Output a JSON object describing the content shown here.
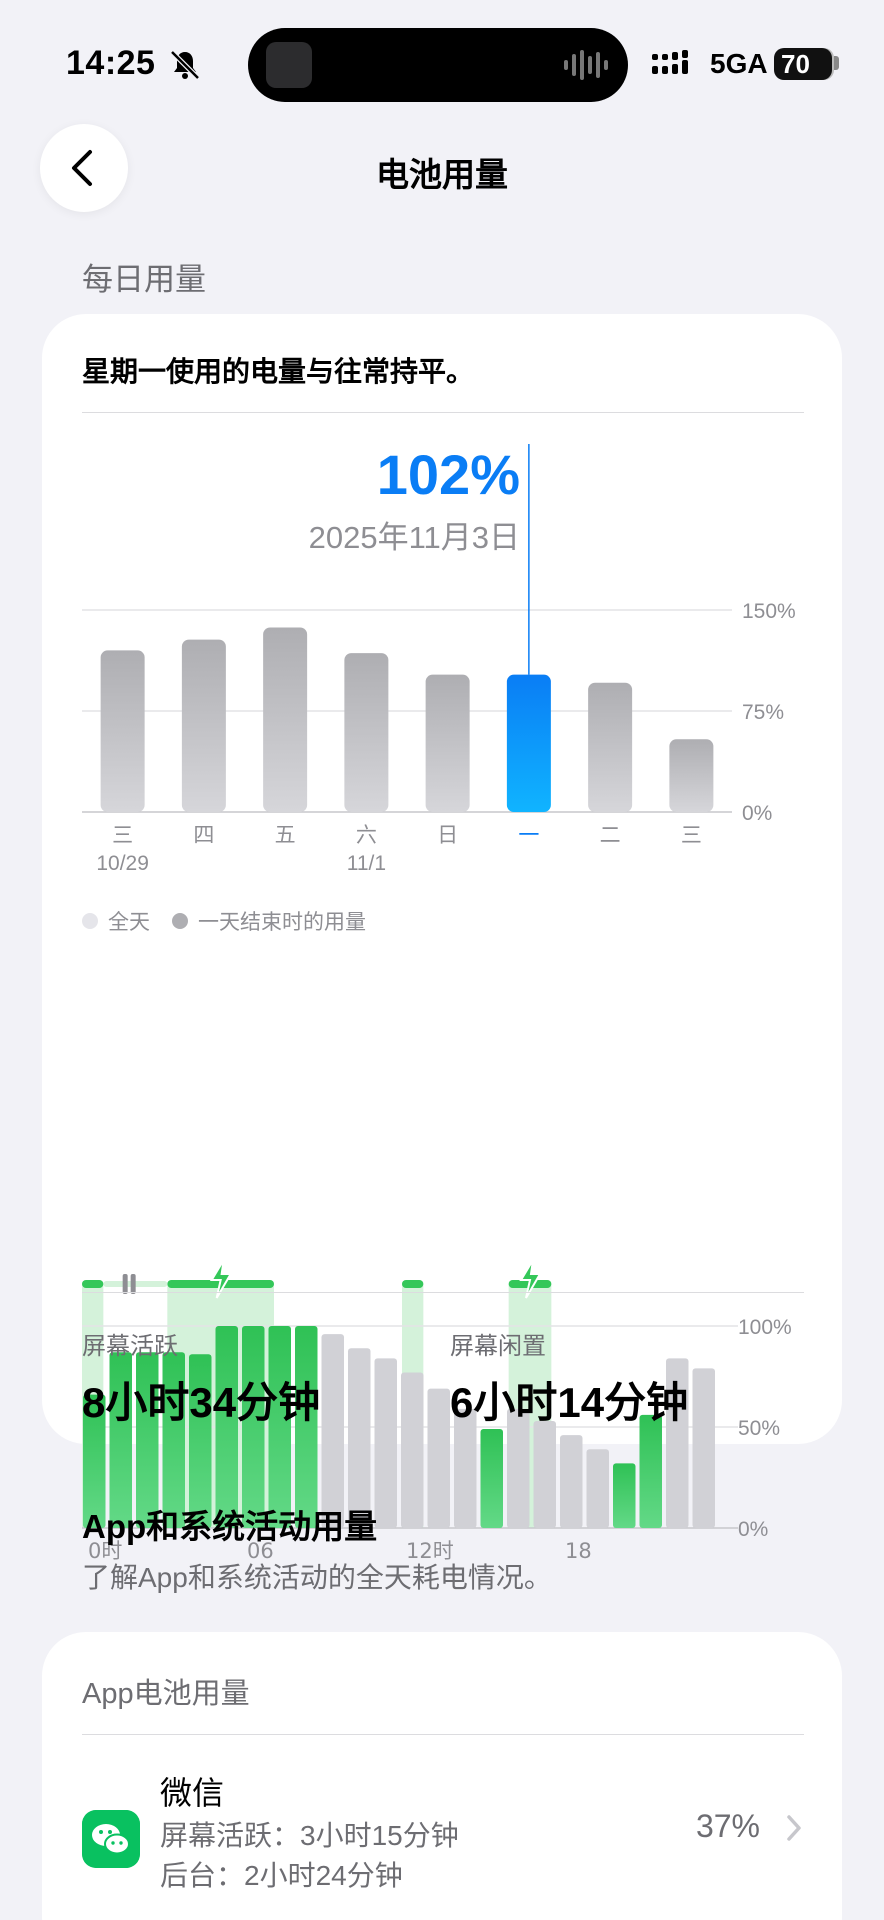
{
  "status_bar": {
    "time": "14:25",
    "network": "5GA",
    "battery": "70",
    "icons": [
      "bell-slash-icon",
      "signal-icon",
      "battery-icon",
      "waveform-icon"
    ]
  },
  "nav": {
    "title": "电池用量",
    "back_icon": "chevron-left-icon"
  },
  "daily": {
    "section_label": "每日用量",
    "summary": "星期一使用的电量与往常持平。",
    "selected_value": "102%",
    "selected_date": "2025年11月3日",
    "legend": [
      {
        "label": "全天",
        "color": "#e5e5ea"
      },
      {
        "label": "一天结束时的用量",
        "color": "#aeaeb2"
      }
    ],
    "stats": {
      "active_label": "屏幕活跃",
      "active_value": "8小时34分钟",
      "idle_label": "屏幕闲置",
      "idle_value": "6小时14分钟"
    }
  },
  "chart_data": [
    {
      "type": "bar",
      "categories": [
        "三",
        "四",
        "五",
        "六",
        "日",
        "一",
        "二",
        "三"
      ],
      "sublabels": [
        "10/29",
        "",
        "",
        "11/1",
        "",
        "",
        "",
        ""
      ],
      "values": [
        120,
        128,
        137,
        118,
        102,
        102,
        96,
        54
      ],
      "selected_index": 5,
      "ylim": [
        0,
        150
      ],
      "yticks": [
        "150%",
        "75%",
        "0%"
      ],
      "grid": true,
      "colors": {
        "bar": "#b6b6bb",
        "selected": "#0a84ff"
      }
    },
    {
      "type": "bar",
      "x_ticks": [
        "0时",
        "06",
        "12时",
        "18"
      ],
      "y_ticks": [
        "100%",
        "50%",
        "0%"
      ],
      "ylim": [
        0,
        100
      ],
      "values": [
        66,
        87,
        87,
        87,
        86,
        100,
        100,
        100,
        100,
        96,
        89,
        84,
        77,
        69,
        59,
        49,
        59,
        53,
        46,
        39,
        32,
        56,
        84,
        79
      ],
      "charging_hours": [
        0,
        4,
        5,
        6,
        7,
        8,
        15,
        20,
        21
      ],
      "charging_spans": [
        [
          0,
          1
        ],
        [
          4,
          9
        ],
        [
          15,
          16
        ],
        [
          20,
          22
        ]
      ],
      "grid": true,
      "colors": {
        "battery": "#34c759",
        "idle": "#d1d1d6",
        "charging_band": "#d4f2da"
      }
    }
  ],
  "app_section": {
    "title": "App和系统活动用量",
    "subtitle": "了解App和系统活动的全天耗电情况。",
    "card_title": "App电池用量",
    "apps": [
      {
        "name": "微信",
        "line1": "屏幕活跃：3小时15分钟",
        "line2": "后台：2小时24分钟",
        "percent": "37%",
        "icon": "wechat-icon"
      }
    ]
  }
}
